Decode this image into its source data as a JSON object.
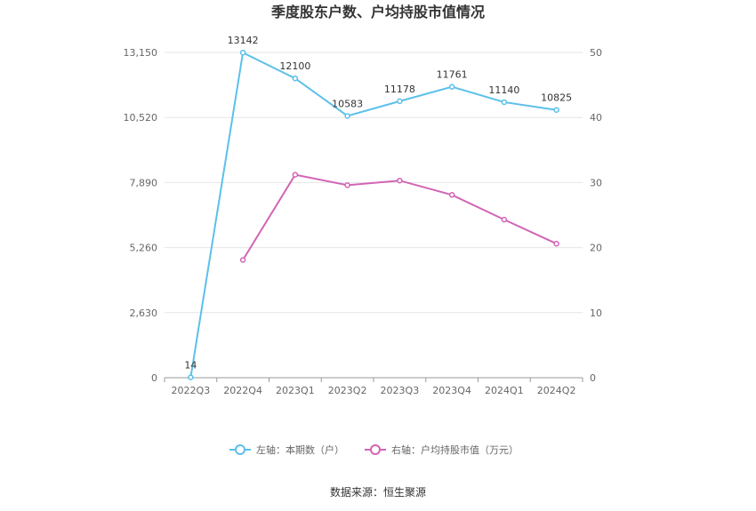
{
  "chart_data": {
    "type": "line",
    "title": "季度股东户数、户均持股市值情况",
    "categories": [
      "2022Q3",
      "2022Q4",
      "2023Q1",
      "2023Q2",
      "2023Q3",
      "2023Q4",
      "2024Q1",
      "2024Q2"
    ],
    "left_axis": {
      "ticks": [
        "0",
        "2,630",
        "5,260",
        "7,890",
        "10,520",
        "13,150"
      ],
      "ylim": [
        0,
        13150
      ]
    },
    "right_axis": {
      "ticks": [
        "0",
        "10",
        "20",
        "30",
        "40",
        "50"
      ],
      "ylim": [
        0,
        50
      ]
    },
    "series": [
      {
        "name": "本期数（户）",
        "legend": "左轴：本期数（户）",
        "axis": "left",
        "color": "#5bc0eb",
        "values": [
          14,
          13142,
          12100,
          10583,
          11178,
          11761,
          11140,
          10825
        ],
        "labels": [
          "14",
          "13142",
          "12100",
          "10583",
          "11178",
          "11761",
          "11140",
          "10825"
        ]
      },
      {
        "name": "户均持股市值（万元）",
        "legend": "右轴：户均持股市值（万元）",
        "axis": "right",
        "color": "#d264b6",
        "values": [
          null,
          18.1,
          31.2,
          29.6,
          30.3,
          28.1,
          24.3,
          20.6
        ]
      }
    ],
    "grid": true,
    "legend_position": "bottom",
    "source": "数据来源：恒生聚源"
  }
}
